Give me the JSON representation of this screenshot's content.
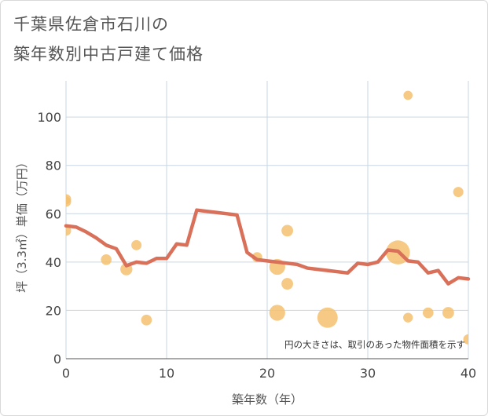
{
  "title_line1": "千葉県佐倉市石川の",
  "title_line2": "築年数別中古戸建て価格",
  "chart_data": {
    "type": "scatter+line",
    "xlabel": "築年数（年）",
    "ylabel": "坪（3.3㎡）単価（万円）",
    "xlim": [
      0,
      40
    ],
    "ylim": [
      0,
      115
    ],
    "xticks": [
      0,
      10,
      20,
      30,
      40
    ],
    "yticks": [
      0,
      20,
      40,
      60,
      80,
      100
    ],
    "grid": true,
    "note": "円の大きさは、取引のあった物件面積を示す",
    "colors": {
      "bubble": "#f5c170",
      "line": "#d9705a",
      "grid": "#c9d6e3"
    },
    "bubbles": [
      {
        "x": 0,
        "y": 66,
        "size": 1.0
      },
      {
        "x": 0,
        "y": 65,
        "size": 1.0
      },
      {
        "x": 0,
        "y": 53,
        "size": 1.0
      },
      {
        "x": 4,
        "y": 41,
        "size": 1.1
      },
      {
        "x": 6,
        "y": 37,
        "size": 1.4
      },
      {
        "x": 7,
        "y": 47,
        "size": 1.0
      },
      {
        "x": 8,
        "y": 16,
        "size": 1.1
      },
      {
        "x": 19,
        "y": 42,
        "size": 1.0
      },
      {
        "x": 21,
        "y": 38,
        "size": 2.2
      },
      {
        "x": 21,
        "y": 19,
        "size": 2.2
      },
      {
        "x": 22,
        "y": 53,
        "size": 1.3
      },
      {
        "x": 22,
        "y": 31,
        "size": 1.3
      },
      {
        "x": 26,
        "y": 17,
        "size": 3.6
      },
      {
        "x": 33,
        "y": 44,
        "size": 5.0
      },
      {
        "x": 34,
        "y": 109,
        "size": 0.8
      },
      {
        "x": 34,
        "y": 17,
        "size": 0.9
      },
      {
        "x": 36,
        "y": 19,
        "size": 1.1
      },
      {
        "x": 38,
        "y": 19,
        "size": 1.3
      },
      {
        "x": 39,
        "y": 69,
        "size": 1.0
      },
      {
        "x": 40,
        "y": 8,
        "size": 1.0
      }
    ],
    "line": {
      "x": [
        0,
        1,
        2,
        3,
        4,
        5,
        6,
        7,
        8,
        9,
        10,
        11,
        12,
        13,
        14,
        15,
        16,
        17,
        18,
        19,
        20,
        21,
        22,
        23,
        24,
        25,
        26,
        27,
        28,
        29,
        30,
        31,
        32,
        33,
        34,
        35,
        36,
        37,
        38,
        39,
        40
      ],
      "y": [
        55,
        54.5,
        52.5,
        50,
        47,
        45.5,
        38.5,
        40,
        39.5,
        41.5,
        41.5,
        47.5,
        47,
        61.5,
        61,
        60.5,
        60,
        59.5,
        44,
        41,
        40.5,
        40,
        39.5,
        39,
        37.5,
        37,
        36.5,
        36,
        35.5,
        39.5,
        39,
        40,
        45,
        44.5,
        40.5,
        40,
        35.5,
        36.5,
        31,
        33.5,
        33
      ]
    }
  }
}
